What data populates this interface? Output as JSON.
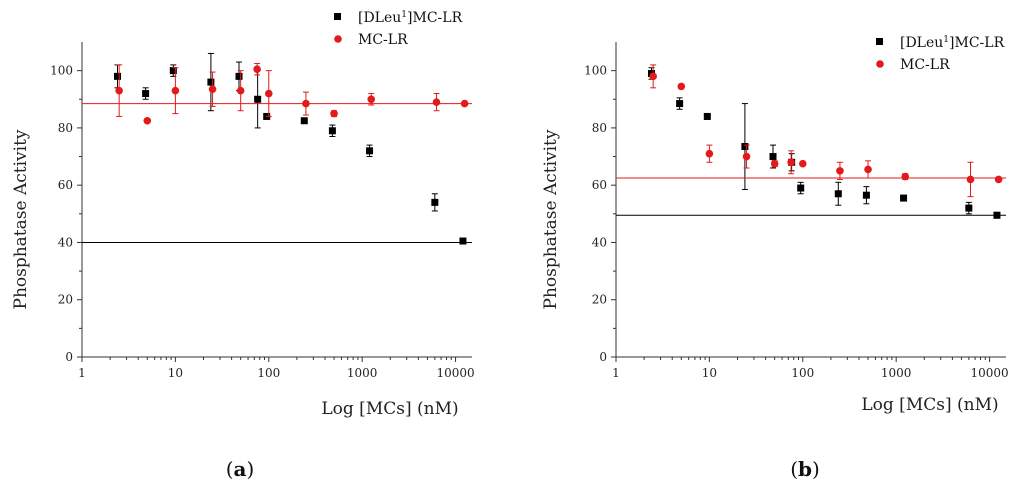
{
  "chart_data": [
    {
      "type": "scatter",
      "panel_label_prefix": "(",
      "panel_label": "a",
      "panel_label_suffix": ")",
      "xlabel": "Log [MCs] (nM)",
      "ylabel": "Phosphatase Activity",
      "xscale": "log",
      "xlim": [
        1,
        15000
      ],
      "ylim": [
        0,
        110
      ],
      "xticks": [
        1,
        10,
        100,
        1000,
        10000
      ],
      "yticks": [
        0,
        20,
        40,
        60,
        80,
        100
      ],
      "legend_position": "top-right",
      "series": [
        {
          "legend_prefix": "[DLeu",
          "legend_sup": "1",
          "legend_suffix": "]MC-LR",
          "color": "#000000",
          "marker": "square",
          "fit_line": 40,
          "points": [
            {
              "x": 2.4,
              "y": 98,
              "err": 4
            },
            {
              "x": 4.8,
              "y": 92,
              "err": 2
            },
            {
              "x": 9.5,
              "y": 100,
              "err": 2
            },
            {
              "x": 24,
              "y": 96,
              "err": 10
            },
            {
              "x": 48,
              "y": 98,
              "err": 5
            },
            {
              "x": 76,
              "y": 90,
              "err": 10
            },
            {
              "x": 95,
              "y": 84,
              "err": 0
            },
            {
              "x": 240,
              "y": 82.5,
              "err": 0
            },
            {
              "x": 480,
              "y": 79,
              "err": 2
            },
            {
              "x": 1200,
              "y": 72,
              "err": 2
            },
            {
              "x": 6000,
              "y": 54,
              "err": 3
            },
            {
              "x": 12000,
              "y": 40.5,
              "err": 0
            }
          ]
        },
        {
          "legend_prefix": "MC-LR",
          "legend_sup": "",
          "legend_suffix": "",
          "color": "#e31a1c",
          "marker": "circle",
          "fit_line": 88.5,
          "points": [
            {
              "x": 2.5,
              "y": 93,
              "err": 9
            },
            {
              "x": 5,
              "y": 82.5,
              "err": 0
            },
            {
              "x": 10,
              "y": 93,
              "err": 8
            },
            {
              "x": 25,
              "y": 93.5,
              "err": 6
            },
            {
              "x": 50,
              "y": 93,
              "err": 7
            },
            {
              "x": 75,
              "y": 100.5,
              "err": 2
            },
            {
              "x": 100,
              "y": 92,
              "err": 8
            },
            {
              "x": 250,
              "y": 88.5,
              "err": 4
            },
            {
              "x": 500,
              "y": 85,
              "err": 1
            },
            {
              "x": 1250,
              "y": 90,
              "err": 2
            },
            {
              "x": 6250,
              "y": 89,
              "err": 3
            },
            {
              "x": 12500,
              "y": 88.5,
              "err": 0
            }
          ]
        }
      ]
    },
    {
      "type": "scatter",
      "panel_label_prefix": "(",
      "panel_label": "b",
      "panel_label_suffix": ")",
      "xlabel": "Log [MCs] (nM)",
      "ylabel": "Phosphatase Activity",
      "xscale": "log",
      "xlim": [
        1,
        15000
      ],
      "ylim": [
        0,
        110
      ],
      "xticks": [
        1,
        10,
        100,
        1000,
        10000
      ],
      "yticks": [
        0,
        20,
        40,
        60,
        80,
        100
      ],
      "legend_position": "top-right",
      "series": [
        {
          "legend_prefix": "[DLeu",
          "legend_sup": "1",
          "legend_suffix": "]MC-LR",
          "color": "#000000",
          "marker": "square",
          "fit_line": 49.5,
          "points": [
            {
              "x": 2.4,
              "y": 99,
              "err": 2
            },
            {
              "x": 4.8,
              "y": 88.5,
              "err": 2
            },
            {
              "x": 9.5,
              "y": 84,
              "err": 1
            },
            {
              "x": 24,
              "y": 73.5,
              "err": 15
            },
            {
              "x": 48,
              "y": 70,
              "err": 4
            },
            {
              "x": 76,
              "y": 68,
              "err": 3
            },
            {
              "x": 95,
              "y": 59,
              "err": 2
            },
            {
              "x": 240,
              "y": 57,
              "err": 4
            },
            {
              "x": 480,
              "y": 56.5,
              "err": 3
            },
            {
              "x": 1200,
              "y": 55.5,
              "err": 0
            },
            {
              "x": 6000,
              "y": 52,
              "err": 2
            },
            {
              "x": 12000,
              "y": 49.5,
              "err": 1
            }
          ]
        },
        {
          "legend_prefix": "MC-LR",
          "legend_sup": "",
          "legend_suffix": "",
          "color": "#e31a1c",
          "marker": "circle",
          "fit_line": 62.5,
          "points": [
            {
              "x": 2.5,
              "y": 98,
              "err": 4
            },
            {
              "x": 5,
              "y": 94.5,
              "err": 0
            },
            {
              "x": 10,
              "y": 71,
              "err": 3
            },
            {
              "x": 25,
              "y": 70,
              "err": 4
            },
            {
              "x": 50,
              "y": 67.5,
              "err": 1
            },
            {
              "x": 75,
              "y": 68,
              "err": 4
            },
            {
              "x": 100,
              "y": 67.5,
              "err": 0
            },
            {
              "x": 250,
              "y": 65,
              "err": 3
            },
            {
              "x": 500,
              "y": 65.5,
              "err": 3
            },
            {
              "x": 1250,
              "y": 63,
              "err": 1
            },
            {
              "x": 6250,
              "y": 62,
              "err": 6
            },
            {
              "x": 12500,
              "y": 62,
              "err": 0
            }
          ]
        }
      ]
    }
  ]
}
